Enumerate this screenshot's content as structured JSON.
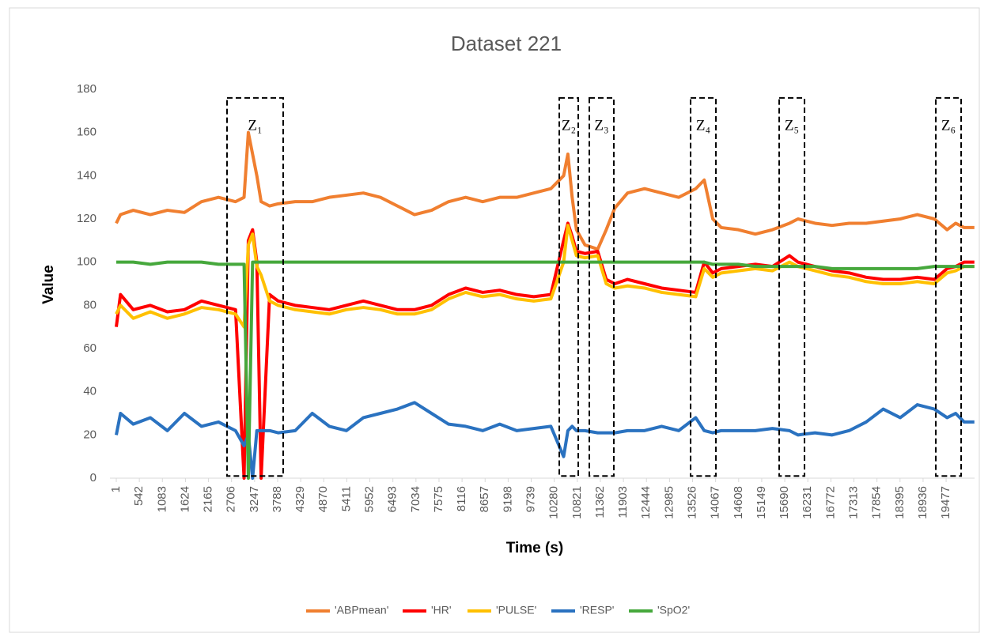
{
  "chart_data": {
    "type": "line",
    "title": "Dataset 221",
    "xlabel": "Time (s)",
    "ylabel": "Value",
    "x": [
      1,
      100,
      400,
      800,
      1200,
      1600,
      2000,
      2400,
      2800,
      3000,
      3100,
      3200,
      3300,
      3400,
      3600,
      3800,
      4200,
      4600,
      5000,
      5400,
      5800,
      6200,
      6600,
      7000,
      7400,
      7800,
      8200,
      8600,
      9000,
      9400,
      9800,
      10200,
      10500,
      10600,
      10700,
      10800,
      11000,
      11300,
      11500,
      11700,
      12000,
      12400,
      12800,
      13200,
      13600,
      13800,
      14000,
      14200,
      14600,
      15000,
      15400,
      15800,
      16000,
      16400,
      16800,
      17200,
      17600,
      18000,
      18400,
      18800,
      19200,
      19500,
      19700,
      19900,
      20140
    ],
    "series": [
      {
        "name": "'ABPmean'",
        "color": "#f07f30",
        "values": [
          118,
          122,
          124,
          122,
          124,
          123,
          128,
          130,
          128,
          130,
          160,
          150,
          140,
          128,
          126,
          127,
          128,
          128,
          130,
          131,
          132,
          130,
          126,
          122,
          124,
          128,
          130,
          128,
          130,
          130,
          132,
          134,
          140,
          150,
          130,
          115,
          108,
          106,
          115,
          125,
          132,
          134,
          132,
          130,
          134,
          138,
          120,
          116,
          115,
          113,
          115,
          118,
          120,
          118,
          117,
          118,
          118,
          119,
          120,
          122,
          120,
          115,
          118,
          116,
          116
        ]
      },
      {
        "name": "'HR'",
        "color": "#ff0000",
        "values": [
          70,
          85,
          78,
          80,
          77,
          78,
          82,
          80,
          78,
          0,
          110,
          115,
          100,
          0,
          85,
          82,
          80,
          79,
          78,
          80,
          82,
          80,
          78,
          78,
          80,
          85,
          88,
          86,
          87,
          85,
          84,
          85,
          110,
          118,
          112,
          105,
          104,
          105,
          92,
          90,
          92,
          90,
          88,
          87,
          86,
          100,
          95,
          97,
          98,
          99,
          98,
          103,
          100,
          98,
          96,
          95,
          93,
          92,
          92,
          93,
          92,
          97,
          98,
          100,
          100
        ]
      },
      {
        "name": "'PULSE'",
        "color": "#ffc000",
        "values": [
          76,
          80,
          74,
          77,
          74,
          76,
          79,
          78,
          76,
          70,
          108,
          113,
          98,
          94,
          82,
          80,
          78,
          77,
          76,
          78,
          79,
          78,
          76,
          76,
          78,
          83,
          86,
          84,
          85,
          83,
          82,
          83,
          100,
          117,
          110,
          103,
          102,
          103,
          90,
          88,
          89,
          88,
          86,
          85,
          84,
          97,
          93,
          95,
          96,
          97,
          96,
          100,
          98,
          96,
          94,
          93,
          91,
          90,
          90,
          91,
          90,
          95,
          96,
          98,
          98
        ]
      },
      {
        "name": "'RESP'",
        "color": "#2a72c0",
        "values": [
          20,
          30,
          25,
          28,
          22,
          30,
          24,
          26,
          22,
          15,
          20,
          0,
          22,
          22,
          22,
          21,
          22,
          30,
          24,
          22,
          28,
          30,
          32,
          35,
          30,
          25,
          24,
          22,
          25,
          22,
          23,
          24,
          10,
          22,
          24,
          22,
          22,
          21,
          21,
          21,
          22,
          22,
          24,
          22,
          28,
          22,
          21,
          22,
          22,
          22,
          23,
          22,
          20,
          21,
          20,
          22,
          26,
          32,
          28,
          34,
          32,
          28,
          30,
          26,
          26
        ]
      },
      {
        "name": "'SpO2'",
        "color": "#46a83c",
        "values": [
          100,
          100,
          100,
          99,
          100,
          100,
          100,
          99,
          99,
          99,
          0,
          100,
          100,
          100,
          100,
          100,
          100,
          100,
          100,
          100,
          100,
          100,
          100,
          100,
          100,
          100,
          100,
          100,
          100,
          100,
          100,
          100,
          100,
          100,
          100,
          100,
          100,
          100,
          100,
          100,
          100,
          100,
          100,
          100,
          100,
          100,
          99,
          99,
          99,
          98,
          98,
          98,
          98,
          98,
          97,
          97,
          97,
          97,
          97,
          97,
          98,
          98,
          98,
          98,
          98
        ]
      }
    ],
    "xlim": [
      1,
      20144
    ],
    "xticks": [
      1,
      542,
      1083,
      1624,
      2165,
      2706,
      3247,
      3788,
      4329,
      4870,
      5411,
      5952,
      6493,
      7034,
      7575,
      8116,
      8657,
      9198,
      9739,
      10280,
      10821,
      11362,
      11903,
      12444,
      12985,
      13526,
      14067,
      14608,
      15149,
      15690,
      16231,
      16772,
      17313,
      17854,
      18395,
      18936,
      19477
    ],
    "ylim": [
      0,
      180
    ],
    "yticks": [
      0,
      20,
      40,
      60,
      80,
      100,
      120,
      140,
      160,
      180
    ],
    "grid": false,
    "legend": "bottom",
    "annotations": [
      {
        "label": "Z₁",
        "x_range": [
          2600,
          3918
        ],
        "y_range": [
          1,
          176
        ]
      },
      {
        "label": "Z₂",
        "x_range": [
          10398,
          10843
        ],
        "y_range": [
          1,
          176
        ]
      },
      {
        "label": "Z₃",
        "x_range": [
          11103,
          11678
        ],
        "y_range": [
          1,
          176
        ]
      },
      {
        "label": "Z₄",
        "x_range": [
          13480,
          14074
        ],
        "y_range": [
          1,
          176
        ]
      },
      {
        "label": "Z₅",
        "x_range": [
          15559,
          16153
        ],
        "y_range": [
          1,
          176
        ]
      },
      {
        "label": "Z₆",
        "x_range": [
          19235,
          19829
        ],
        "y_range": [
          1,
          176
        ]
      }
    ]
  }
}
